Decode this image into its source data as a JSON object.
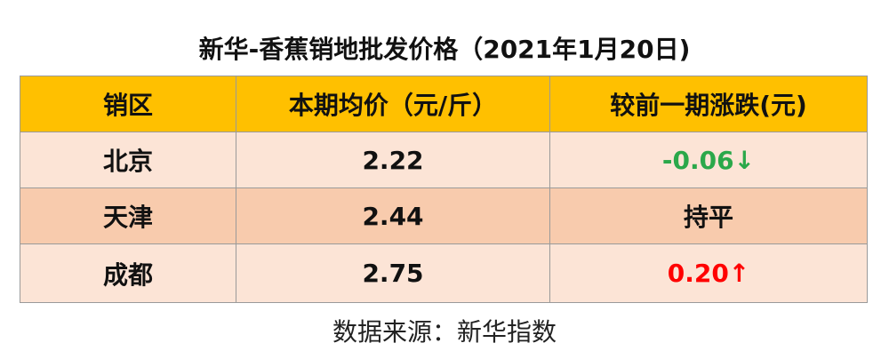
{
  "header": {
    "title": "新华-香蕉销地批发价格（2021年1月20日)"
  },
  "table": {
    "columns": [
      "销区",
      "本期均价（元/斤）",
      "较前一期涨跌(元)"
    ],
    "rows": [
      [
        "北京",
        "2.22",
        "-0.06↓"
      ],
      [
        "天津",
        "2.44",
        "持平"
      ],
      [
        "成都",
        "2.75",
        "0.20↑"
      ]
    ]
  },
  "footer": {
    "source": "数据来源：新华指数"
  }
}
